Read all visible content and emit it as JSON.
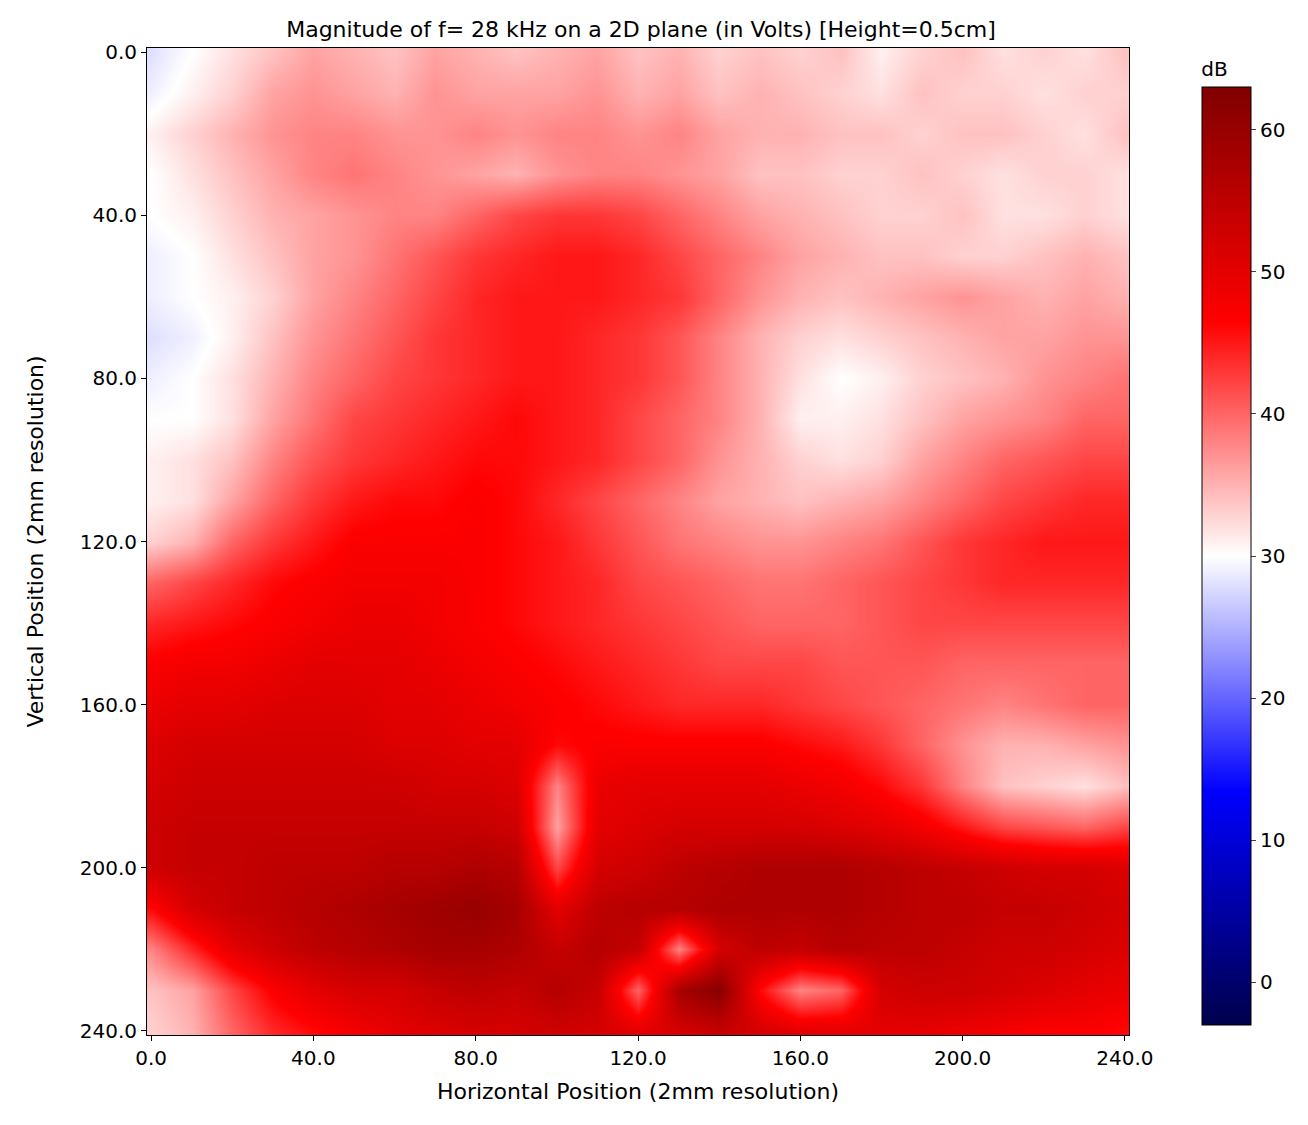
{
  "chart_data": {
    "type": "heatmap",
    "title": "Magnitude of f= 28 kHz on a 2D plane (in Volts) [Height=0.5cm]",
    "x_label": "Horizontal Position (2mm resolution)",
    "y_label": "Vertical Position (2mm resolution)",
    "x": [
      0,
      10,
      20,
      30,
      40,
      50,
      60,
      70,
      80,
      90,
      100,
      110,
      120,
      130,
      140,
      150,
      160,
      170,
      180,
      190,
      200,
      210,
      220,
      230,
      240
    ],
    "y": [
      0,
      10,
      20,
      30,
      40,
      50,
      60,
      70,
      80,
      90,
      100,
      110,
      120,
      130,
      140,
      150,
      160,
      170,
      180,
      190,
      200,
      210,
      220,
      230,
      240
    ],
    "z": [
      [
        28,
        30,
        32,
        34,
        36,
        35,
        34,
        36,
        35,
        34,
        35,
        36,
        34,
        35,
        33,
        34,
        33,
        34,
        31,
        33,
        34,
        32,
        33,
        32,
        34
      ],
      [
        29,
        31,
        33,
        36,
        37,
        36,
        35,
        37,
        36,
        36,
        36,
        37,
        35,
        36,
        34,
        35,
        34,
        33,
        32,
        34,
        33,
        33,
        32,
        33,
        33
      ],
      [
        31,
        33,
        35,
        37,
        38,
        38,
        37,
        37,
        38,
        37,
        38,
        38,
        37,
        38,
        36,
        35,
        35,
        34,
        34,
        33,
        34,
        34,
        33,
        32,
        34
      ],
      [
        30,
        32,
        34,
        36,
        38,
        39,
        38,
        37,
        36,
        35,
        37,
        38,
        38,
        37,
        36,
        34,
        34,
        33,
        33,
        34,
        33,
        32,
        33,
        33,
        32
      ],
      [
        30,
        31,
        33,
        35,
        36,
        37,
        38,
        38,
        40,
        42,
        43,
        43,
        42,
        40,
        38,
        36,
        35,
        34,
        33,
        33,
        34,
        32,
        32,
        33,
        32
      ],
      [
        29,
        30,
        32,
        34,
        36,
        37,
        39,
        41,
        43,
        44,
        45,
        45,
        44,
        42,
        40,
        38,
        36,
        35,
        34,
        34,
        33,
        33,
        34,
        35,
        34
      ],
      [
        29,
        30,
        31,
        33,
        36,
        38,
        40,
        42,
        44,
        45,
        45,
        45,
        44,
        43,
        40,
        37,
        35,
        34,
        35,
        36,
        37,
        36,
        35,
        36,
        35
      ],
      [
        28,
        29,
        31,
        34,
        37,
        39,
        41,
        43,
        44,
        45,
        45,
        44,
        43,
        41,
        38,
        35,
        33,
        32,
        33,
        34,
        35,
        36,
        36,
        37,
        37
      ],
      [
        29,
        30,
        32,
        35,
        38,
        40,
        42,
        43,
        44,
        45,
        45,
        44,
        43,
        41,
        38,
        35,
        32,
        30,
        31,
        33,
        34,
        35,
        37,
        38,
        39
      ],
      [
        30,
        30,
        32,
        36,
        39,
        42,
        43,
        44,
        45,
        46,
        45,
        44,
        42,
        40,
        38,
        35,
        31,
        31,
        32,
        34,
        36,
        37,
        38,
        40,
        40
      ],
      [
        31,
        32,
        34,
        38,
        41,
        43,
        44,
        45,
        46,
        46,
        45,
        44,
        42,
        40,
        37,
        35,
        33,
        32,
        33,
        36,
        38,
        40,
        41,
        42,
        42
      ],
      [
        31,
        32,
        36,
        40,
        43,
        45,
        46,
        46,
        47,
        46,
        44,
        42,
        40,
        38,
        36,
        35,
        34,
        35,
        36,
        38,
        40,
        42,
        43,
        44,
        44
      ],
      [
        33,
        35,
        40,
        43,
        45,
        47,
        47,
        47,
        47,
        46,
        45,
        43,
        41,
        39,
        38,
        37,
        37,
        38,
        39,
        41,
        43,
        44,
        45,
        45,
        45
      ],
      [
        40,
        42,
        44,
        46,
        47,
        48,
        48,
        48,
        47,
        46,
        45,
        44,
        42,
        41,
        40,
        39,
        39,
        40,
        41,
        42,
        43,
        44,
        44,
        44,
        44
      ],
      [
        44,
        45,
        46,
        47,
        48,
        49,
        49,
        48,
        47,
        46,
        45,
        44,
        43,
        42,
        41,
        40,
        40,
        40,
        41,
        42,
        42,
        42,
        42,
        42,
        42
      ],
      [
        47,
        48,
        48,
        49,
        50,
        50,
        50,
        49,
        48,
        47,
        46,
        45,
        44,
        43,
        42,
        42,
        42,
        41,
        41,
        41,
        40,
        40,
        40,
        40,
        40
      ],
      [
        49,
        50,
        50,
        51,
        51,
        51,
        50,
        50,
        49,
        48,
        47,
        46,
        45,
        44,
        44,
        44,
        43,
        42,
        41,
        40,
        39,
        38,
        39,
        40,
        40
      ],
      [
        51,
        52,
        52,
        52,
        52,
        52,
        51,
        51,
        50,
        50,
        46,
        47,
        47,
        47,
        47,
        47,
        46,
        45,
        43,
        40,
        37,
        35,
        35,
        36,
        37
      ],
      [
        52,
        53,
        53,
        53,
        53,
        53,
        53,
        52,
        52,
        51,
        38,
        49,
        50,
        50,
        50,
        50,
        49,
        48,
        46,
        43,
        38,
        34,
        33,
        32,
        34
      ],
      [
        53,
        54,
        54,
        54,
        54,
        54,
        54,
        54,
        54,
        53,
        36,
        50,
        51,
        52,
        52,
        52,
        52,
        51,
        50,
        48,
        45,
        42,
        41,
        40,
        42
      ],
      [
        53,
        54,
        54,
        55,
        55,
        55,
        56,
        56,
        57,
        56,
        42,
        52,
        53,
        55,
        56,
        57,
        57,
        57,
        56,
        55,
        54,
        53,
        52,
        52,
        51
      ],
      [
        46,
        52,
        54,
        55,
        56,
        57,
        58,
        59,
        60,
        58,
        50,
        55,
        56,
        56,
        57,
        57,
        57,
        57,
        56,
        55,
        55,
        54,
        54,
        53,
        52
      ],
      [
        38,
        44,
        50,
        53,
        55,
        56,
        57,
        58,
        58,
        57,
        54,
        56,
        54,
        38,
        52,
        55,
        54,
        56,
        55,
        55,
        54,
        53,
        53,
        52,
        51
      ],
      [
        34,
        36,
        42,
        47,
        50,
        52,
        52,
        54,
        55,
        54,
        56,
        54,
        40,
        58,
        62,
        46,
        38,
        40,
        52,
        53,
        53,
        52,
        51,
        50,
        49
      ],
      [
        33,
        35,
        40,
        44,
        46,
        48,
        50,
        51,
        52,
        52,
        53,
        52,
        50,
        52,
        54,
        52,
        50,
        50,
        50,
        50,
        49,
        48,
        47,
        47,
        46
      ]
    ],
    "xlim": [
      -1,
      241
    ],
    "ylim": [
      241,
      -1
    ],
    "xticks": [
      {
        "value": 0,
        "label": "0.0"
      },
      {
        "value": 40,
        "label": "40.0"
      },
      {
        "value": 80,
        "label": "80.0"
      },
      {
        "value": 120,
        "label": "120.0"
      },
      {
        "value": 160,
        "label": "160.0"
      },
      {
        "value": 200,
        "label": "200.0"
      },
      {
        "value": 240,
        "label": "240.0"
      }
    ],
    "yticks": [
      {
        "value": 0,
        "label": "0.0"
      },
      {
        "value": 40,
        "label": "40.0"
      },
      {
        "value": 80,
        "label": "80.0"
      },
      {
        "value": 120,
        "label": "120.0"
      },
      {
        "value": 160,
        "label": "160.0"
      },
      {
        "value": 200,
        "label": "200.0"
      },
      {
        "value": 240,
        "label": "240.0"
      }
    ],
    "colorbar_title": "dB",
    "colorbar_range": [
      -3,
      63
    ],
    "colorbar_ticks": [
      0,
      10,
      20,
      30,
      40,
      50,
      60
    ]
  }
}
